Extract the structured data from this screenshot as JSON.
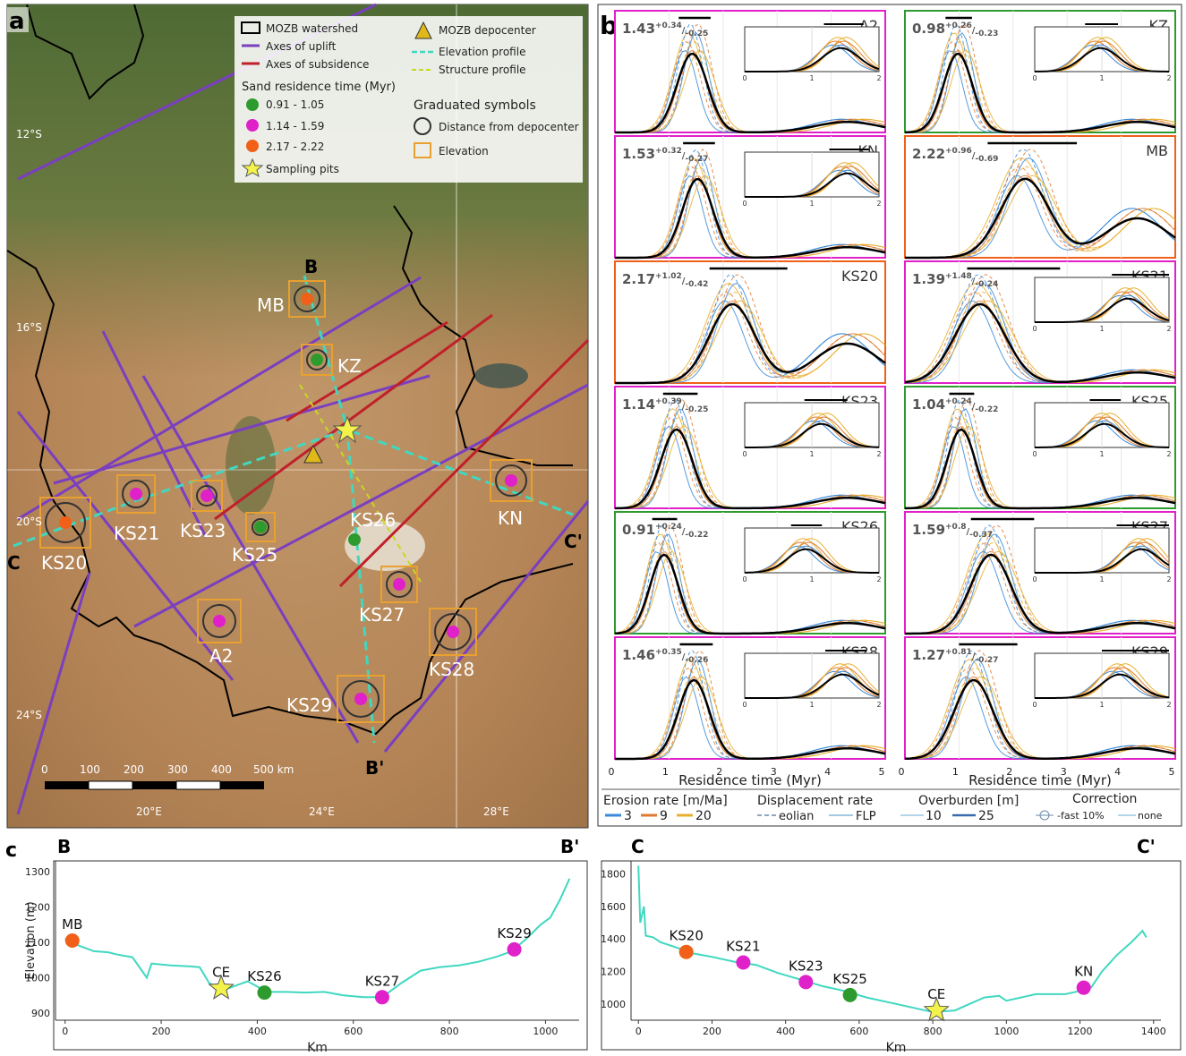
{
  "panel_letters": {
    "a": "a",
    "b": "b",
    "c": "c"
  },
  "colors": {
    "green": "#2e9b2e",
    "magenta": "#e020c8",
    "orange": "#f06018",
    "uplift": "#7a3fc0",
    "subsidence": "#c0202a",
    "profile": "#40d8c0",
    "structure": "#c8d820",
    "box": "#e8a030",
    "black_curve": "#000000",
    "thin_blue": "#3a8ad8",
    "thin_orange": "#e07a30",
    "thin_yellow": "#e8b030"
  },
  "map": {
    "lat_labels": [
      "12°S",
      "16°S",
      "20°S",
      "24°S"
    ],
    "lon_labels": [
      "20°E",
      "24°E",
      "28°E"
    ],
    "scale_labels": [
      "0",
      "100",
      "200",
      "300",
      "400",
      "500 km"
    ],
    "legend": {
      "watershed": "MOZB watershed",
      "uplift": "Axes of uplift",
      "subsidence": "Axes of subsidence",
      "residence_title": "Sand residence time (Myr)",
      "r1": "0.91 - 1.05",
      "r2": "1.14 - 1.59",
      "r3": "2.17 - 2.22",
      "pits": "Sampling pits",
      "depocenter": "MOZB depocenter",
      "elev_profile": "Elevation profile",
      "struct_profile": "Structure profile",
      "grad_title": "Graduated symbols",
      "distance": "Distance from depocenter",
      "elevation": "Elevation"
    },
    "sites": [
      {
        "name": "MB",
        "color": "orange"
      },
      {
        "name": "KZ",
        "color": "green"
      },
      {
        "name": "KN",
        "color": "magenta"
      },
      {
        "name": "KS21",
        "color": "magenta"
      },
      {
        "name": "KS23",
        "color": "magenta"
      },
      {
        "name": "KS25",
        "color": "green"
      },
      {
        "name": "KS20",
        "color": "orange"
      },
      {
        "name": "KS26",
        "color": "green"
      },
      {
        "name": "KS27",
        "color": "magenta"
      },
      {
        "name": "A2",
        "color": "magenta"
      },
      {
        "name": "KS28",
        "color": "magenta"
      },
      {
        "name": "KS29",
        "color": "magenta"
      }
    ],
    "profile_labels": {
      "B": "B",
      "Bp": "B'",
      "C": "C",
      "Cp": "C'"
    }
  },
  "density_panels": [
    {
      "site": "A2",
      "value": "1.43",
      "plus": "+0.34",
      "minus": "-0.25",
      "border": "magenta"
    },
    {
      "site": "KZ",
      "value": "0.98",
      "plus": "+0.26",
      "minus": "-0.23",
      "border": "green"
    },
    {
      "site": "KN",
      "value": "1.53",
      "plus": "+0.32",
      "minus": "-0.27",
      "border": "magenta"
    },
    {
      "site": "MB",
      "value": "2.22",
      "plus": "+0.96",
      "minus": "-0.69",
      "border": "orange"
    },
    {
      "site": "KS20",
      "value": "2.17",
      "plus": "+1.02",
      "minus": "-0.42",
      "border": "orange"
    },
    {
      "site": "KS21",
      "value": "1.39",
      "plus": "+1.48",
      "minus": "-0.24",
      "border": "magenta"
    },
    {
      "site": "KS23",
      "value": "1.14",
      "plus": "+0.39",
      "minus": "-0.25",
      "border": "magenta"
    },
    {
      "site": "KS25",
      "value": "1.04",
      "plus": "+0.24",
      "minus": "-0.22",
      "border": "green"
    },
    {
      "site": "KS26",
      "value": "0.91",
      "plus": "+0.24",
      "minus": "-0.22",
      "border": "green"
    },
    {
      "site": "KS27",
      "value": "1.59",
      "plus": "+0.8",
      "minus": "-0.37",
      "border": "magenta"
    },
    {
      "site": "KS28",
      "value": "1.46",
      "plus": "+0.35",
      "minus": "-0.26",
      "border": "magenta"
    },
    {
      "site": "KS29",
      "value": "1.27",
      "plus": "+0.81",
      "minus": "-0.27",
      "border": "magenta"
    }
  ],
  "density_axis": {
    "ticks": [
      "0",
      "1",
      "2",
      "3",
      "4",
      "5"
    ],
    "inset_ticks": [
      "0",
      "1",
      "2"
    ],
    "xlabel": "Residence time (Myr)"
  },
  "panel_b_legend": {
    "erosion_title": "Erosion rate [m/Ma]",
    "erosion_values": [
      "3",
      "9",
      "20"
    ],
    "displacement_title": "Displacement rate",
    "displacement_values": [
      "eolian",
      "FLP"
    ],
    "overburden_title": "Overburden [m]",
    "overburden_values": [
      "10",
      "25"
    ],
    "correction_title": "Correction",
    "correction_values": [
      "-fast 10%",
      "none"
    ]
  },
  "chart_data": [
    {
      "type": "line",
      "title": "B",
      "end_label": "B'",
      "xlabel": "Km",
      "ylabel": "Elevation (m)",
      "xlim": [
        -20,
        1070
      ],
      "ylim": [
        880,
        1330
      ],
      "xticks": [
        0,
        200,
        400,
        600,
        800,
        1000
      ],
      "yticks": [
        900,
        1000,
        1100,
        1200,
        1300
      ],
      "series": [
        {
          "values": [
            [
              0,
              1110
            ],
            [
              30,
              1090
            ],
            [
              60,
              1075
            ],
            [
              90,
              1072
            ],
            [
              110,
              1065
            ],
            [
              140,
              1058
            ],
            [
              170,
              1000
            ],
            [
              180,
              1040
            ],
            [
              220,
              1035
            ],
            [
              260,
              1032
            ],
            [
              280,
              1030
            ],
            [
              300,
              985
            ],
            [
              330,
              965
            ],
            [
              360,
              980
            ],
            [
              380,
              990
            ],
            [
              400,
              975
            ],
            [
              420,
              960
            ],
            [
              460,
              960
            ],
            [
              500,
              958
            ],
            [
              540,
              960
            ],
            [
              580,
              950
            ],
            [
              620,
              945
            ],
            [
              650,
              945
            ],
            [
              670,
              955
            ],
            [
              700,
              985
            ],
            [
              740,
              1020
            ],
            [
              780,
              1030
            ],
            [
              820,
              1035
            ],
            [
              860,
              1045
            ],
            [
              900,
              1060
            ],
            [
              930,
              1075
            ],
            [
              960,
              1110
            ],
            [
              990,
              1150
            ],
            [
              1010,
              1170
            ],
            [
              1030,
              1220
            ],
            [
              1050,
              1280
            ]
          ]
        }
      ],
      "points": [
        {
          "label": "MB",
          "x": 15,
          "y": 1105,
          "color": "orange",
          "marker": "circle"
        },
        {
          "label": "CE",
          "x": 325,
          "y": 970,
          "color": "yellow",
          "marker": "star"
        },
        {
          "label": "KS26",
          "x": 415,
          "y": 958,
          "color": "green",
          "marker": "circle"
        },
        {
          "label": "KS27",
          "x": 660,
          "y": 945,
          "color": "magenta",
          "marker": "circle"
        },
        {
          "label": "KS29",
          "x": 935,
          "y": 1080,
          "color": "magenta",
          "marker": "circle"
        }
      ]
    },
    {
      "type": "line",
      "title": "C",
      "end_label": "C'",
      "xlabel": "Km",
      "ylabel": "",
      "xlim": [
        -20,
        1420
      ],
      "ylim": [
        900,
        1880
      ],
      "xticks": [
        0,
        200,
        400,
        600,
        800,
        1000,
        1200,
        1400
      ],
      "yticks": [
        1000,
        1200,
        1400,
        1600,
        1800
      ],
      "series": [
        {
          "values": [
            [
              0,
              1850
            ],
            [
              5,
              1500
            ],
            [
              15,
              1600
            ],
            [
              20,
              1420
            ],
            [
              40,
              1410
            ],
            [
              60,
              1380
            ],
            [
              100,
              1350
            ],
            [
              150,
              1310
            ],
            [
              200,
              1290
            ],
            [
              260,
              1260
            ],
            [
              320,
              1240
            ],
            [
              380,
              1190
            ],
            [
              440,
              1150
            ],
            [
              500,
              1110
            ],
            [
              560,
              1080
            ],
            [
              620,
              1040
            ],
            [
              700,
              1000
            ],
            [
              760,
              970
            ],
            [
              800,
              950
            ],
            [
              860,
              960
            ],
            [
              900,
              1000
            ],
            [
              940,
              1040
            ],
            [
              980,
              1050
            ],
            [
              1000,
              1020
            ],
            [
              1040,
              1040
            ],
            [
              1080,
              1060
            ],
            [
              1120,
              1060
            ],
            [
              1160,
              1060
            ],
            [
              1200,
              1080
            ],
            [
              1230,
              1100
            ],
            [
              1260,
              1200
            ],
            [
              1300,
              1300
            ],
            [
              1340,
              1380
            ],
            [
              1370,
              1450
            ],
            [
              1380,
              1410
            ]
          ]
        }
      ],
      "points": [
        {
          "label": "KS20",
          "x": 130,
          "y": 1320,
          "color": "orange",
          "marker": "circle"
        },
        {
          "label": "KS21",
          "x": 285,
          "y": 1255,
          "color": "magenta",
          "marker": "circle"
        },
        {
          "label": "KS23",
          "x": 455,
          "y": 1135,
          "color": "magenta",
          "marker": "circle"
        },
        {
          "label": "KS25",
          "x": 575,
          "y": 1055,
          "color": "green",
          "marker": "circle"
        },
        {
          "label": "CE",
          "x": 810,
          "y": 960,
          "color": "yellow",
          "marker": "star"
        },
        {
          "label": "KN",
          "x": 1210,
          "y": 1100,
          "color": "magenta",
          "marker": "circle"
        }
      ]
    }
  ]
}
